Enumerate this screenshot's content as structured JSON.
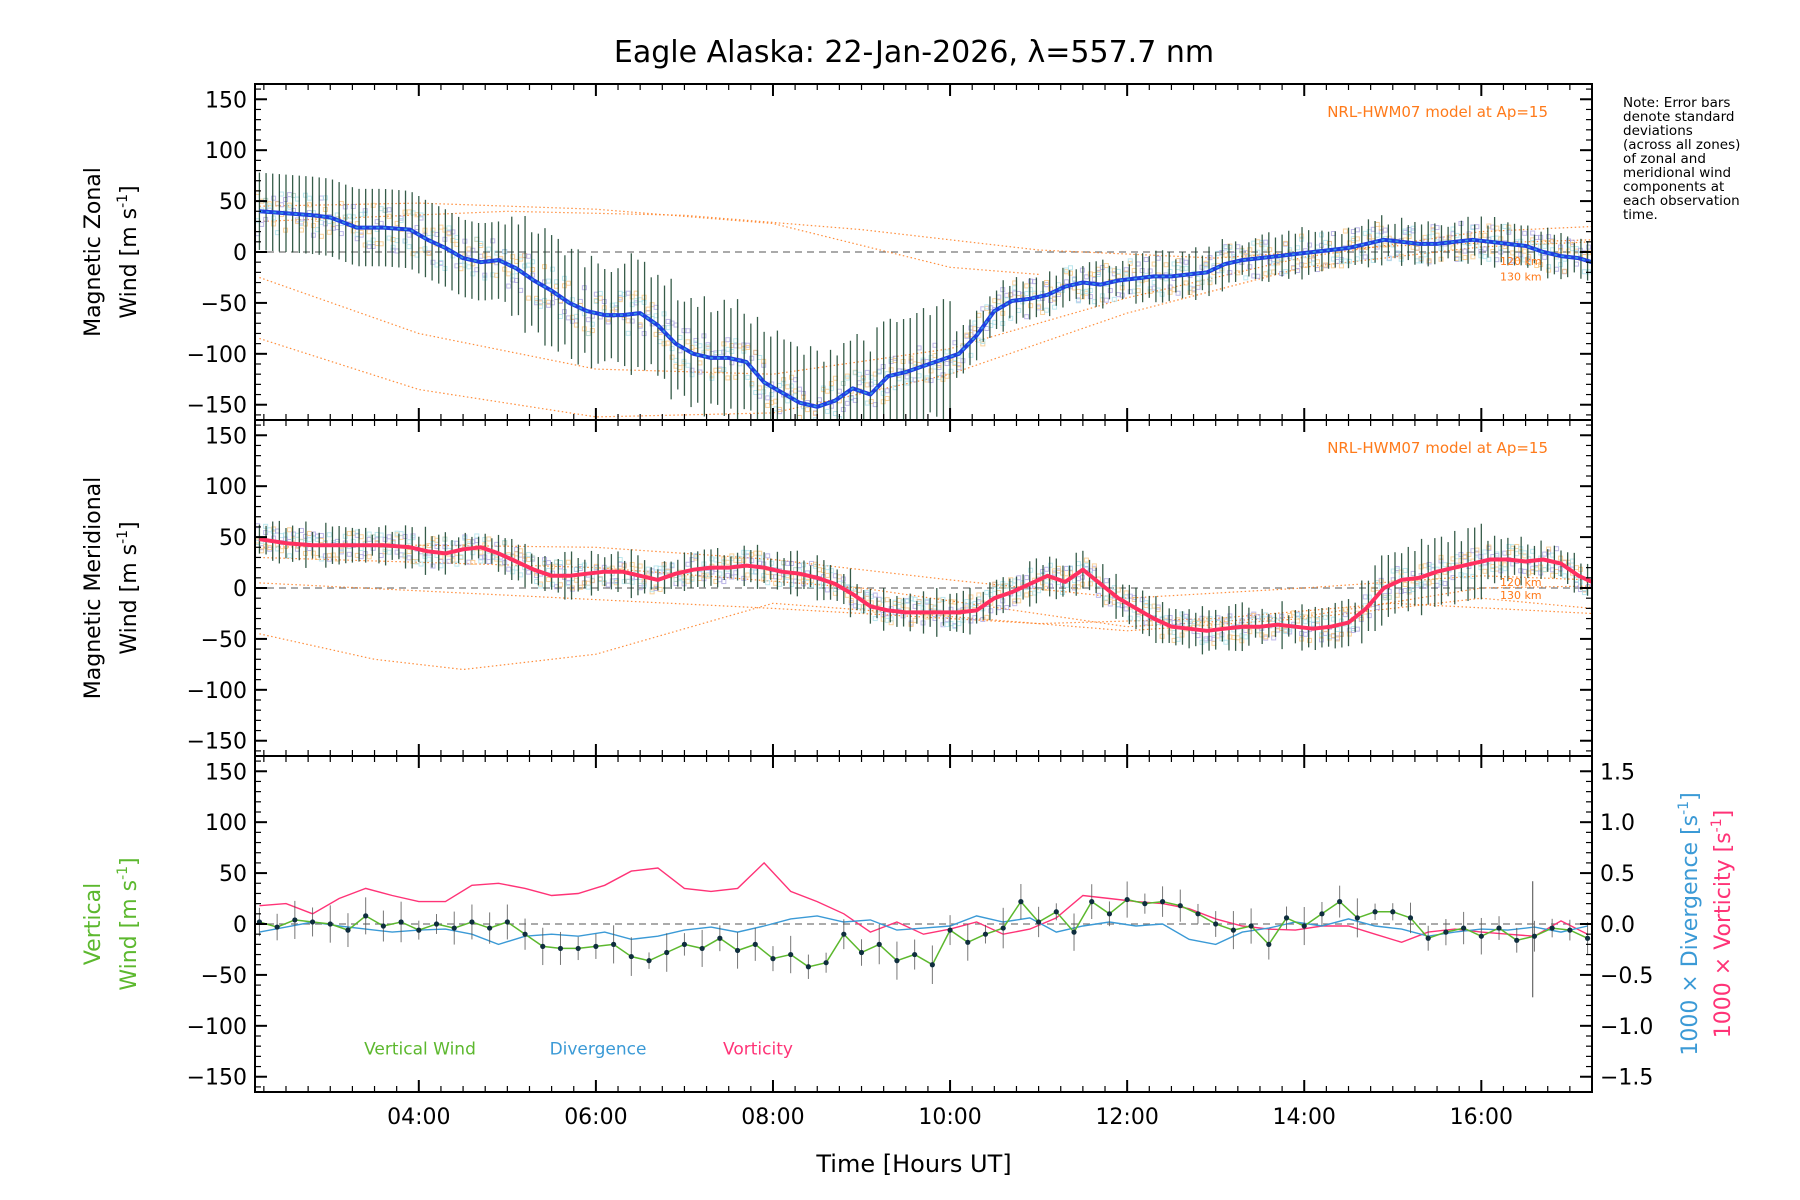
{
  "chart_data": {
    "type": "line",
    "title": "Eagle Alaska: 22-Jan-2026, λ=557.7 nm",
    "xlabel": "Time [Hours UT]",
    "xlim": [
      2.15,
      17.25
    ],
    "xticks": [
      4,
      6,
      8,
      10,
      12,
      14,
      16
    ],
    "xtick_labels": [
      "04:00",
      "06:00",
      "08:00",
      "10:00",
      "12:00",
      "14:00",
      "16:00"
    ],
    "note": [
      "Note: Error bars",
      "denote standard",
      "deviations",
      "(across all zones)",
      "of zonal and",
      "meridional wind",
      "components at",
      "each observation",
      "time."
    ],
    "colors": {
      "zonal": "#1f3fe0",
      "zonal_light": "#3aa0e8",
      "meridional": "#ff3060",
      "vertical": "#5cb82e",
      "divergence": "#3b9ad6",
      "vorticity": "#ff3377",
      "model": "#ff7a1a",
      "zones": "#a8a0e0",
      "errbar": "#14402a"
    },
    "panels": [
      {
        "id": "zonal",
        "ylabel_line1": "Magnetic Zonal",
        "ylabel_line2": "Wind [m s",
        "ylabel_sup": "-1",
        "ylabel_close": "]",
        "ylim": [
          -165,
          165
        ],
        "yticks": [
          -150,
          -100,
          -50,
          0,
          50,
          100,
          150
        ],
        "model_label": "NRL-HWM07 model at Ap=15",
        "model_alt_labels": [
          "120 km",
          "130 km"
        ],
        "series": [
          {
            "name": "Magnetic Zonal Wind",
            "x": [
              2.2,
              2.5,
              2.8,
              3.0,
              3.3,
              3.6,
              3.9,
              4.1,
              4.3,
              4.5,
              4.7,
              4.9,
              5.1,
              5.3,
              5.5,
              5.7,
              5.9,
              6.1,
              6.3,
              6.5,
              6.7,
              6.9,
              7.1,
              7.3,
              7.5,
              7.7,
              7.9,
              8.1,
              8.3,
              8.5,
              8.7,
              8.9,
              9.1,
              9.3,
              9.5,
              9.7,
              9.9,
              10.1,
              10.3,
              10.5,
              10.7,
              10.9,
              11.1,
              11.3,
              11.5,
              11.7,
              11.9,
              12.1,
              12.3,
              12.5,
              12.7,
              12.9,
              13.1,
              13.3,
              13.5,
              13.7,
              13.9,
              14.1,
              14.3,
              14.5,
              14.7,
              14.9,
              15.1,
              15.3,
              15.5,
              15.7,
              15.9,
              16.1,
              16.3,
              16.5,
              16.7,
              16.9,
              17.1,
              17.25
            ],
            "y": [
              40,
              38,
              36,
              34,
              24,
              24,
              22,
              12,
              4,
              -6,
              -10,
              -8,
              -16,
              -28,
              -38,
              -50,
              -58,
              -62,
              -62,
              -60,
              -72,
              -90,
              -100,
              -104,
              -104,
              -108,
              -128,
              -138,
              -148,
              -152,
              -146,
              -134,
              -140,
              -122,
              -118,
              -112,
              -106,
              -100,
              -82,
              -58,
              -48,
              -46,
              -42,
              -34,
              -30,
              -32,
              -28,
              -26,
              -24,
              -24,
              -22,
              -20,
              -12,
              -8,
              -6,
              -4,
              -2,
              0,
              2,
              4,
              8,
              12,
              10,
              8,
              8,
              10,
              12,
              10,
              8,
              6,
              0,
              -4,
              -6,
              -10
            ]
          }
        ]
      },
      {
        "id": "meridional",
        "ylabel_line1": "Magnetic Meridional",
        "ylabel_line2": "Wind [m s",
        "ylabel_sup": "-1",
        "ylabel_close": "]",
        "ylim": [
          -165,
          165
        ],
        "yticks": [
          -150,
          -100,
          -50,
          0,
          50,
          100,
          150
        ],
        "model_label": "NRL-HWM07 model at Ap=15",
        "model_alt_labels": [
          "120 km",
          "130 km"
        ],
        "series": [
          {
            "name": "Magnetic Meridional Wind",
            "x": [
              2.2,
              2.5,
              2.8,
              3.0,
              3.3,
              3.6,
              3.9,
              4.1,
              4.3,
              4.5,
              4.7,
              4.9,
              5.1,
              5.3,
              5.5,
              5.7,
              5.9,
              6.1,
              6.3,
              6.5,
              6.7,
              6.9,
              7.1,
              7.3,
              7.5,
              7.7,
              7.9,
              8.1,
              8.3,
              8.5,
              8.7,
              8.9,
              9.1,
              9.3,
              9.5,
              9.7,
              9.9,
              10.1,
              10.3,
              10.5,
              10.7,
              10.9,
              11.1,
              11.3,
              11.5,
              11.7,
              11.9,
              12.1,
              12.3,
              12.5,
              12.7,
              12.9,
              13.1,
              13.3,
              13.5,
              13.7,
              13.9,
              14.1,
              14.3,
              14.5,
              14.7,
              14.9,
              15.1,
              15.3,
              15.5,
              15.7,
              15.9,
              16.1,
              16.3,
              16.5,
              16.7,
              16.9,
              17.1,
              17.25
            ],
            "y": [
              48,
              44,
              42,
              42,
              42,
              42,
              40,
              36,
              34,
              38,
              40,
              34,
              26,
              18,
              12,
              12,
              14,
              16,
              16,
              12,
              8,
              14,
              18,
              20,
              20,
              22,
              20,
              16,
              14,
              10,
              4,
              -6,
              -18,
              -22,
              -24,
              -24,
              -24,
              -24,
              -22,
              -10,
              -4,
              4,
              12,
              6,
              18,
              4,
              -10,
              -20,
              -30,
              -38,
              -40,
              -42,
              -40,
              -38,
              -38,
              -36,
              -38,
              -40,
              -38,
              -34,
              -20,
              0,
              8,
              10,
              16,
              20,
              24,
              28,
              28,
              26,
              28,
              24,
              12,
              6
            ]
          }
        ]
      },
      {
        "id": "vertical",
        "ylabel_line1": "Vertical",
        "ylabel_line2": "Wind [m s",
        "ylabel_sup": "-1",
        "ylabel_close": "]",
        "ylim": [
          -165,
          165
        ],
        "yticks": [
          -150,
          -100,
          -50,
          0,
          50,
          100,
          150
        ],
        "right_yticks": [
          1.5,
          1.0,
          0.5,
          0.0,
          -0.5,
          -1.0,
          -1.5
        ],
        "right_ytick_labels": [
          "1.5",
          "1.0",
          "0.5",
          "0.0",
          "−0.5",
          "−1.0",
          "−1.5"
        ],
        "right_ylabel_div": "1000 × Divergence [s",
        "right_ylabel_vor": "1000 × Vorticity [s",
        "right_ylabel_sup": "-1",
        "right_ylabel_close": "]",
        "legend": [
          "Vertical Wind",
          "Divergence",
          "Vorticity"
        ],
        "series": [
          {
            "name": "Vertical Wind",
            "x": [
              2.2,
              2.4,
              2.6,
              2.8,
              3.0,
              3.2,
              3.4,
              3.6,
              3.8,
              4.0,
              4.2,
              4.4,
              4.6,
              4.8,
              5.0,
              5.2,
              5.4,
              5.6,
              5.8,
              6.0,
              6.2,
              6.4,
              6.6,
              6.8,
              7.0,
              7.2,
              7.4,
              7.6,
              7.8,
              8.0,
              8.2,
              8.4,
              8.6,
              8.8,
              9.0,
              9.2,
              9.4,
              9.6,
              9.8,
              10.0,
              10.2,
              10.4,
              10.6,
              10.8,
              11.0,
              11.2,
              11.4,
              11.6,
              11.8,
              12.0,
              12.2,
              12.4,
              12.6,
              12.8,
              13.0,
              13.2,
              13.4,
              13.6,
              13.8,
              14.0,
              14.2,
              14.4,
              14.6,
              14.8,
              15.0,
              15.2,
              15.4,
              15.6,
              15.8,
              16.0,
              16.2,
              16.4,
              16.6,
              16.8,
              17.0,
              17.2
            ],
            "y": [
              2,
              -3,
              4,
              2,
              0,
              -6,
              8,
              -2,
              2,
              -6,
              0,
              -4,
              2,
              -4,
              2,
              -10,
              -22,
              -24,
              -24,
              -22,
              -20,
              -32,
              -36,
              -28,
              -20,
              -24,
              -14,
              -26,
              -20,
              -34,
              -30,
              -42,
              -38,
              -10,
              -28,
              -20,
              -36,
              -30,
              -40,
              -6,
              -18,
              -10,
              -4,
              22,
              2,
              12,
              -8,
              22,
              10,
              24,
              20,
              22,
              18,
              10,
              0,
              -6,
              -2,
              -20,
              6,
              -2,
              10,
              22,
              6,
              12,
              12,
              6,
              -14,
              -8,
              -4,
              -12,
              -4,
              -16,
              -12,
              -4,
              -6,
              -14
            ]
          },
          {
            "name": "Divergence",
            "x": [
              2.2,
              2.5,
              2.8,
              3.1,
              3.4,
              3.7,
              4.0,
              4.3,
              4.6,
              4.9,
              5.2,
              5.5,
              5.8,
              6.1,
              6.4,
              6.7,
              7.0,
              7.3,
              7.6,
              7.9,
              8.2,
              8.5,
              8.8,
              9.1,
              9.4,
              9.7,
              10.0,
              10.3,
              10.6,
              10.9,
              11.2,
              11.5,
              11.8,
              12.1,
              12.4,
              12.7,
              13.0,
              13.3,
              13.6,
              13.9,
              14.2,
              14.5,
              14.8,
              15.1,
              15.4,
              15.7,
              16.0,
              16.3,
              16.6,
              16.9,
              17.2
            ],
            "y": [
              -0.08,
              -0.03,
              0.02,
              -0.02,
              -0.05,
              -0.08,
              -0.06,
              -0.05,
              -0.1,
              -0.2,
              -0.12,
              -0.1,
              -0.12,
              -0.08,
              -0.15,
              -0.12,
              -0.06,
              -0.03,
              -0.08,
              -0.02,
              0.05,
              0.08,
              0.02,
              0.04,
              -0.06,
              -0.04,
              -0.02,
              0.08,
              0.02,
              0.06,
              -0.08,
              -0.02,
              0.02,
              -0.02,
              0.0,
              -0.15,
              -0.2,
              -0.08,
              -0.04,
              0.02,
              -0.02,
              0.05,
              -0.02,
              -0.05,
              -0.12,
              -0.08,
              -0.05,
              -0.06,
              -0.03,
              -0.08,
              -0.02
            ]
          },
          {
            "name": "Vorticity",
            "x": [
              2.2,
              2.5,
              2.8,
              3.1,
              3.4,
              3.7,
              4.0,
              4.3,
              4.6,
              4.9,
              5.2,
              5.5,
              5.8,
              6.1,
              6.4,
              6.7,
              7.0,
              7.3,
              7.6,
              7.9,
              8.2,
              8.5,
              8.8,
              9.1,
              9.4,
              9.7,
              10.0,
              10.3,
              10.6,
              10.9,
              11.2,
              11.5,
              11.8,
              12.1,
              12.4,
              12.7,
              13.0,
              13.3,
              13.6,
              13.9,
              14.2,
              14.5,
              14.8,
              15.1,
              15.4,
              15.7,
              16.0,
              16.3,
              16.6,
              16.9,
              17.2
            ],
            "y": [
              0.18,
              0.2,
              0.1,
              0.25,
              0.35,
              0.28,
              0.22,
              0.22,
              0.38,
              0.4,
              0.35,
              0.28,
              0.3,
              0.38,
              0.52,
              0.55,
              0.35,
              0.32,
              0.35,
              0.6,
              0.32,
              0.22,
              0.1,
              -0.08,
              0.02,
              -0.1,
              -0.05,
              0.02,
              -0.1,
              -0.05,
              0.06,
              0.28,
              0.25,
              0.22,
              0.2,
              0.15,
              0.05,
              -0.02,
              -0.05,
              -0.06,
              -0.02,
              -0.02,
              -0.1,
              -0.18,
              -0.08,
              -0.05,
              -0.08,
              -0.1,
              -0.12,
              0.03,
              -0.1
            ]
          }
        ]
      }
    ]
  }
}
